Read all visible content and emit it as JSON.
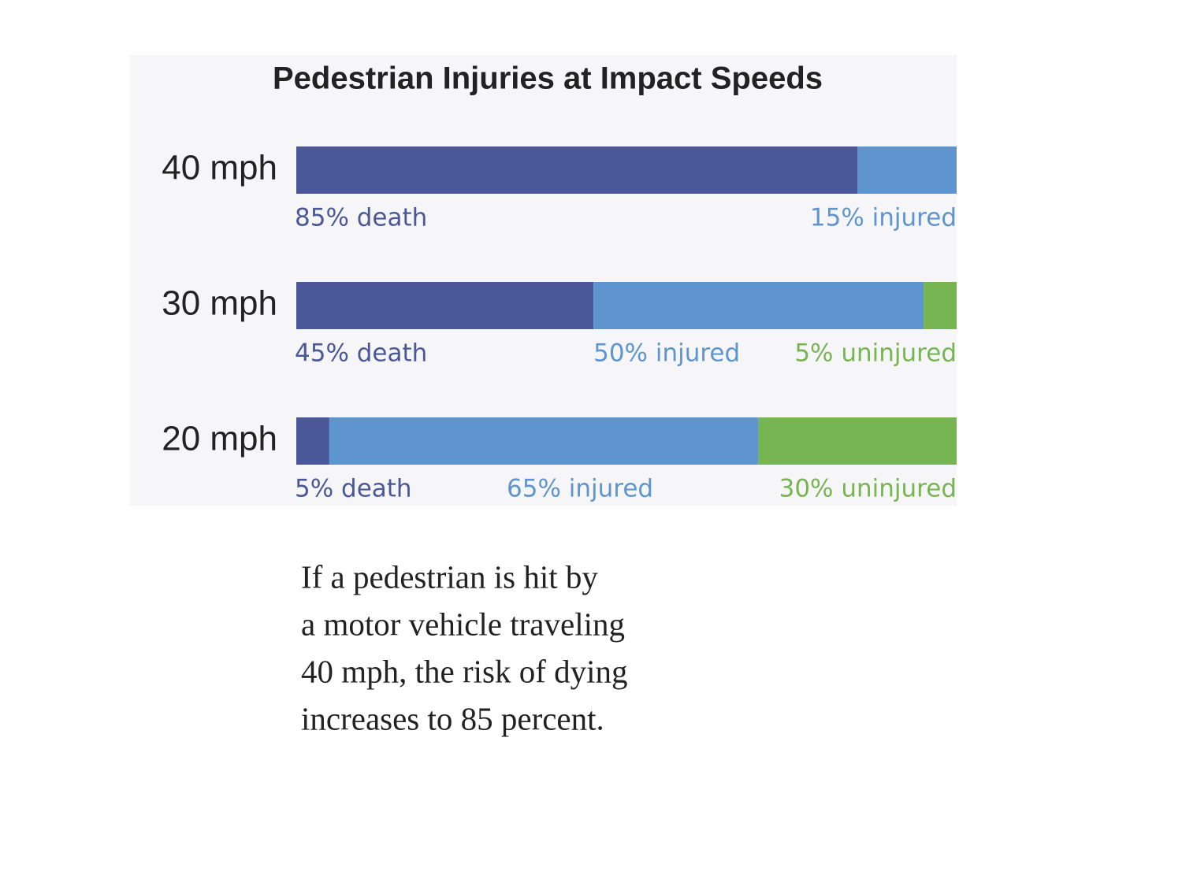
{
  "chart_data": {
    "type": "stacked_bar_horizontal",
    "title": "Pedestrian Injuries at Impact Speeds",
    "categories": [
      "40 mph",
      "30 mph",
      "20 mph"
    ],
    "xlim": [
      0,
      100
    ],
    "series": [
      {
        "name": "death",
        "color": "#4a5899",
        "values": [
          85,
          45,
          5
        ],
        "value_labels": [
          "85% death",
          "45% death",
          "5% death"
        ]
      },
      {
        "name": "injured",
        "color": "#5f95cf",
        "values": [
          15,
          50,
          65
        ],
        "value_labels": [
          "15% injured",
          "50% injured",
          "65% injured"
        ]
      },
      {
        "name": "uninjured",
        "color": "#77b553",
        "values": [
          null,
          5,
          30
        ],
        "value_labels": [
          null,
          "5% uninjured",
          "30% uninjured"
        ]
      }
    ]
  },
  "caption": [
    "If a pedestrian is hit by",
    "a motor vehicle traveling",
    "40 mph, the risk of dying",
    "increases to 85 percent."
  ]
}
